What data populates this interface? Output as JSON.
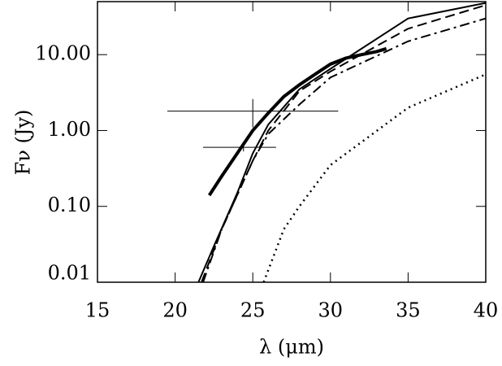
{
  "chart_data": {
    "type": "line",
    "xlabel": "λ (μm)",
    "ylabel": "Fν (Jy)",
    "xlim": [
      15,
      40
    ],
    "xticks": [
      15,
      20,
      25,
      30,
      35,
      40
    ],
    "ylim": [
      0.01,
      50
    ],
    "log_y": true,
    "yticks": [
      {
        "value": 0.01,
        "label": "0.01"
      },
      {
        "value": 0.1,
        "label": "0.10"
      },
      {
        "value": 1,
        "label": "1.00"
      },
      {
        "value": 10,
        "label": "10.00"
      }
    ],
    "series": [
      {
        "color": "#000000",
        "dash": "solid",
        "width": 2,
        "x": [
          21.5,
          22.5,
          24,
          25,
          26,
          28,
          30,
          35,
          40
        ],
        "values": [
          0.01,
          0.03,
          0.15,
          0.5,
          1.2,
          3.5,
          6.5,
          30,
          48
        ]
      },
      {
        "color": "#000000",
        "dash": "dashed",
        "width": 2,
        "x": [
          21.7,
          23,
          25,
          26,
          28,
          30,
          35,
          40
        ],
        "values": [
          0.01,
          0.05,
          0.4,
          1.0,
          3.3,
          6.0,
          22,
          45
        ]
      },
      {
        "color": "#000000",
        "dash": "dashdot",
        "width": 2,
        "x": [
          21.8,
          23,
          25,
          26,
          28,
          30,
          35,
          40
        ],
        "values": [
          0.01,
          0.05,
          0.4,
          0.9,
          2.2,
          5,
          15,
          30
        ]
      },
      {
        "color": "#000000",
        "dash": "dotted",
        "width": 2.5,
        "x": [
          25.7,
          27,
          28,
          30,
          35,
          40
        ],
        "values": [
          0.01,
          0.05,
          0.1,
          0.35,
          2,
          5.5
        ]
      },
      {
        "color": "#000000",
        "dash": "solid",
        "width": 4,
        "x": [
          22.2,
          23,
          24,
          25,
          26,
          27,
          28,
          29,
          30,
          31,
          32,
          33,
          33.6
        ],
        "values": [
          0.14,
          0.25,
          0.5,
          1.0,
          1.7,
          2.8,
          4,
          5.5,
          7.5,
          9,
          10,
          11,
          12
        ]
      }
    ],
    "points": [
      {
        "x": 25,
        "y": 1.8,
        "xlo": 19.5,
        "xhi": 30.5,
        "ylo": 1.1,
        "yhi": 2.6
      },
      {
        "x": 24.4,
        "y": 0.6,
        "xlo": 21.8,
        "xhi": 26.5,
        "ylo": 0.53,
        "yhi": 0.68
      }
    ]
  }
}
